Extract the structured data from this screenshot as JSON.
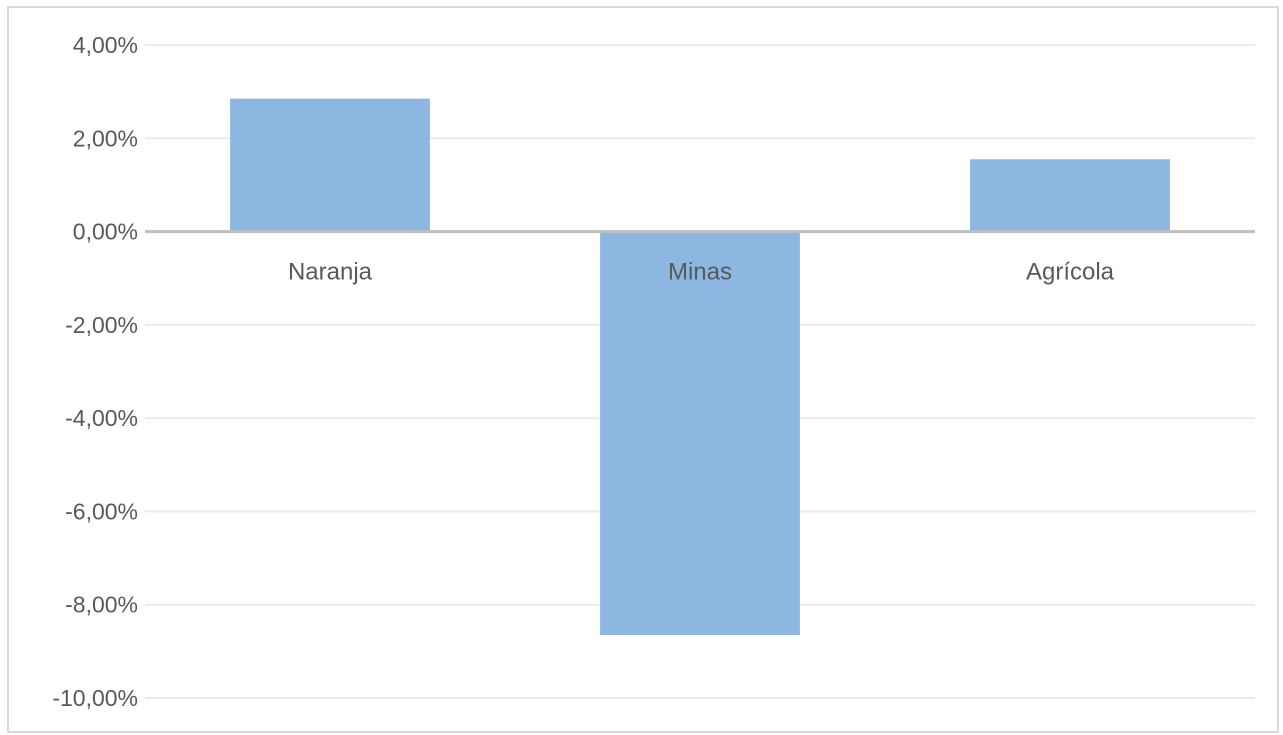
{
  "chart_data": {
    "type": "bar",
    "categories": [
      "Naranja",
      "Minas",
      "Agrícola"
    ],
    "values": [
      2.85,
      -8.65,
      1.55
    ],
    "ylim": [
      -10,
      4
    ],
    "yticks": [
      4,
      2,
      0,
      -2,
      -4,
      -6,
      -8,
      -10
    ],
    "ytick_labels": [
      "4,00%",
      "2,00%",
      "0,00%",
      "-2,00%",
      "-4,00%",
      "-6,00%",
      "-8,00%",
      "-10,00%"
    ],
    "grid": true,
    "bar_color": "#8bb7e0",
    "gridline_color": "#ebebeb",
    "zero_line_color": "#bfbfbf",
    "text_color": "#595959"
  }
}
